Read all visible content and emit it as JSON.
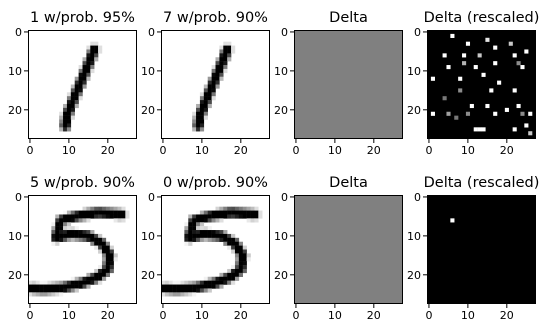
{
  "chart_data": [
    {
      "type": "heatmap",
      "title": "1 w/prob. 95%",
      "content": "digit-1",
      "cmap": "gray_r",
      "xticks": [
        0,
        10,
        20
      ],
      "yticks": [
        0,
        10,
        20
      ],
      "xlim": [
        0,
        27
      ],
      "ylim": [
        27,
        0
      ]
    },
    {
      "type": "heatmap",
      "title": "7 w/prob. 90%",
      "content": "digit-1",
      "cmap": "gray_r",
      "xticks": [
        0,
        10,
        20
      ],
      "yticks": [
        0,
        10,
        20
      ],
      "xlim": [
        0,
        27
      ],
      "ylim": [
        27,
        0
      ]
    },
    {
      "type": "heatmap",
      "title": "Delta",
      "content": "uniform-gray",
      "fill": "#808080",
      "xticks": [
        0,
        10,
        20
      ],
      "yticks": [
        0,
        10,
        20
      ],
      "xlim": [
        0,
        27
      ],
      "ylim": [
        27,
        0
      ]
    },
    {
      "type": "heatmap",
      "title": "Delta (rescaled)",
      "content": "sparse-dots",
      "background": "#000000",
      "xticks": [
        0,
        10,
        20
      ],
      "yticks": [
        0,
        10,
        20
      ],
      "xlim": [
        0,
        27
      ],
      "ylim": [
        27,
        0
      ],
      "cells": [
        [
          6,
          1,
          255
        ],
        [
          10,
          3,
          255
        ],
        [
          15,
          2,
          230
        ],
        [
          17,
          4,
          255
        ],
        [
          21,
          3,
          200
        ],
        [
          4,
          6,
          255
        ],
        [
          9,
          6,
          255
        ],
        [
          13,
          6,
          200
        ],
        [
          22,
          6,
          255
        ],
        [
          25,
          5,
          255
        ],
        [
          5,
          9,
          255
        ],
        [
          9,
          8,
          180
        ],
        [
          12,
          9,
          255
        ],
        [
          17,
          8,
          255
        ],
        [
          23,
          8,
          140
        ],
        [
          24,
          9,
          255
        ],
        [
          1,
          12,
          255
        ],
        [
          8,
          12,
          255
        ],
        [
          14,
          11,
          255
        ],
        [
          18,
          13,
          255
        ],
        [
          8,
          15,
          140
        ],
        [
          16,
          15,
          255
        ],
        [
          4,
          17,
          120
        ],
        [
          22,
          15,
          255
        ],
        [
          11,
          19,
          255
        ],
        [
          15,
          19,
          255
        ],
        [
          20,
          20,
          255
        ],
        [
          23,
          19,
          255
        ],
        [
          1,
          21,
          255
        ],
        [
          5,
          21,
          160
        ],
        [
          10,
          21,
          140
        ],
        [
          17,
          21,
          255
        ],
        [
          24,
          21,
          140
        ],
        [
          26,
          21,
          255
        ],
        [
          12,
          25,
          255
        ],
        [
          13,
          25,
          255
        ],
        [
          14,
          25,
          255
        ],
        [
          22,
          25,
          255
        ],
        [
          25,
          24,
          255
        ],
        [
          7,
          22,
          120
        ],
        [
          26,
          26,
          200
        ]
      ]
    },
    {
      "type": "heatmap",
      "title": "5 w/prob. 90%",
      "content": "digit-5",
      "cmap": "gray_r",
      "xticks": [
        0,
        10,
        20
      ],
      "yticks": [
        0,
        10,
        20
      ],
      "xlim": [
        0,
        27
      ],
      "ylim": [
        27,
        0
      ]
    },
    {
      "type": "heatmap",
      "title": "0 w/prob. 90%",
      "content": "digit-5",
      "cmap": "gray_r",
      "xticks": [
        0,
        10,
        20
      ],
      "yticks": [
        0,
        10,
        20
      ],
      "xlim": [
        0,
        27
      ],
      "ylim": [
        27,
        0
      ]
    },
    {
      "type": "heatmap",
      "title": "Delta",
      "content": "uniform-gray",
      "fill": "#808080",
      "xticks": [
        0,
        10,
        20
      ],
      "yticks": [
        0,
        10,
        20
      ],
      "xlim": [
        0,
        27
      ],
      "ylim": [
        27,
        0
      ]
    },
    {
      "type": "heatmap",
      "title": "Delta (rescaled)",
      "content": "sparse-dots",
      "background": "#000000",
      "xticks": [
        0,
        10,
        20
      ],
      "yticks": [
        0,
        10,
        20
      ],
      "xlim": [
        0,
        27
      ],
      "ylim": [
        27,
        0
      ],
      "cells": [
        [
          6,
          6,
          255
        ]
      ]
    }
  ]
}
